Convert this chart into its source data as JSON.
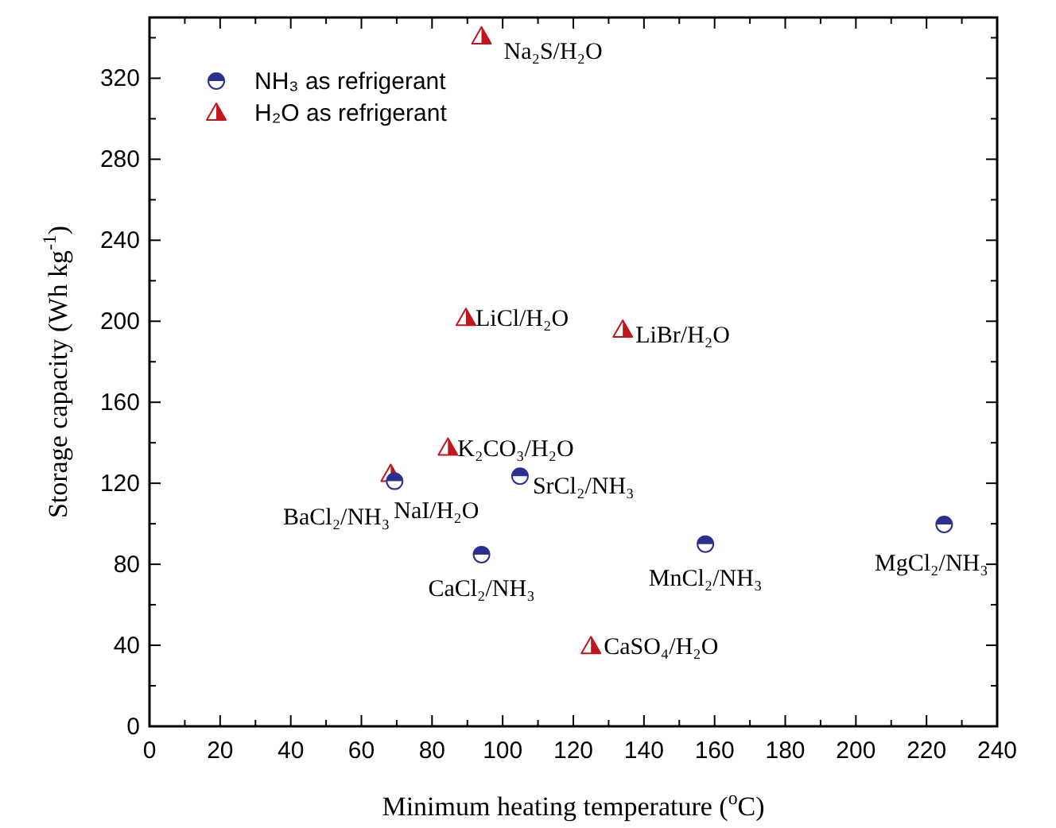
{
  "chart_data": {
    "type": "scatter",
    "xlabel": "Minimum heating temperature ($^{o}$C)",
    "ylabel": "Storage capacity (Wh kg$^{-1}$)",
    "xlim": [
      0,
      240
    ],
    "xticks": [
      0,
      20,
      40,
      60,
      80,
      100,
      120,
      140,
      160,
      180,
      200,
      220,
      240
    ],
    "ylim": [
      0,
      350
    ],
    "yticks": [
      0,
      40,
      80,
      120,
      160,
      200,
      240,
      280,
      320
    ],
    "grid": false,
    "legend": "top left",
    "series": [
      {
        "name": "NH₃ as refrigerant",
        "color": "#2b2f8f",
        "marker": "circle",
        "x": [
          69.4,
          104.9,
          94,
          157.4,
          225
        ],
        "values": [
          121,
          123.5,
          84.8,
          90,
          99.7
        ]
      },
      {
        "name": "H₂O as refrigerant",
        "color": "#c0161c",
        "marker": "triangle",
        "x": [
          94,
          89.6,
          134,
          84.5,
          68.3,
          125
        ],
        "values": [
          340.6,
          201.6,
          195.8,
          137.5,
          124.6,
          39.5
        ]
      }
    ],
    "annotations": [
      {
        "text": "Na₂S/H₂O",
        "x": 94,
        "y": 340.6
      },
      {
        "text": "LiCl/H₂O",
        "x": 89.6,
        "y": 201.6
      },
      {
        "text": "LiBr/H₂O",
        "x": 134,
        "y": 195.8
      },
      {
        "text": "K₂CO₃/H₂O",
        "x": 84.5,
        "y": 137.5
      },
      {
        "text": "SrCl₂/NH₃",
        "x": 104.9,
        "y": 123.5
      },
      {
        "text": "BaCl₂/NH₃",
        "x": 69.4,
        "y": 121
      },
      {
        "text": "NaI/H₂O",
        "x": 68.3,
        "y": 124.6
      },
      {
        "text": "CaCl₂/NH₃",
        "x": 94,
        "y": 84.8
      },
      {
        "text": "MnCl₂/NH₃",
        "x": 157.4,
        "y": 90
      },
      {
        "text": "MgCl₂/NH₃",
        "x": 225,
        "y": 99.7
      },
      {
        "text": "CaSO₄/H₂O",
        "x": 125,
        "y": 39.5
      }
    ]
  }
}
